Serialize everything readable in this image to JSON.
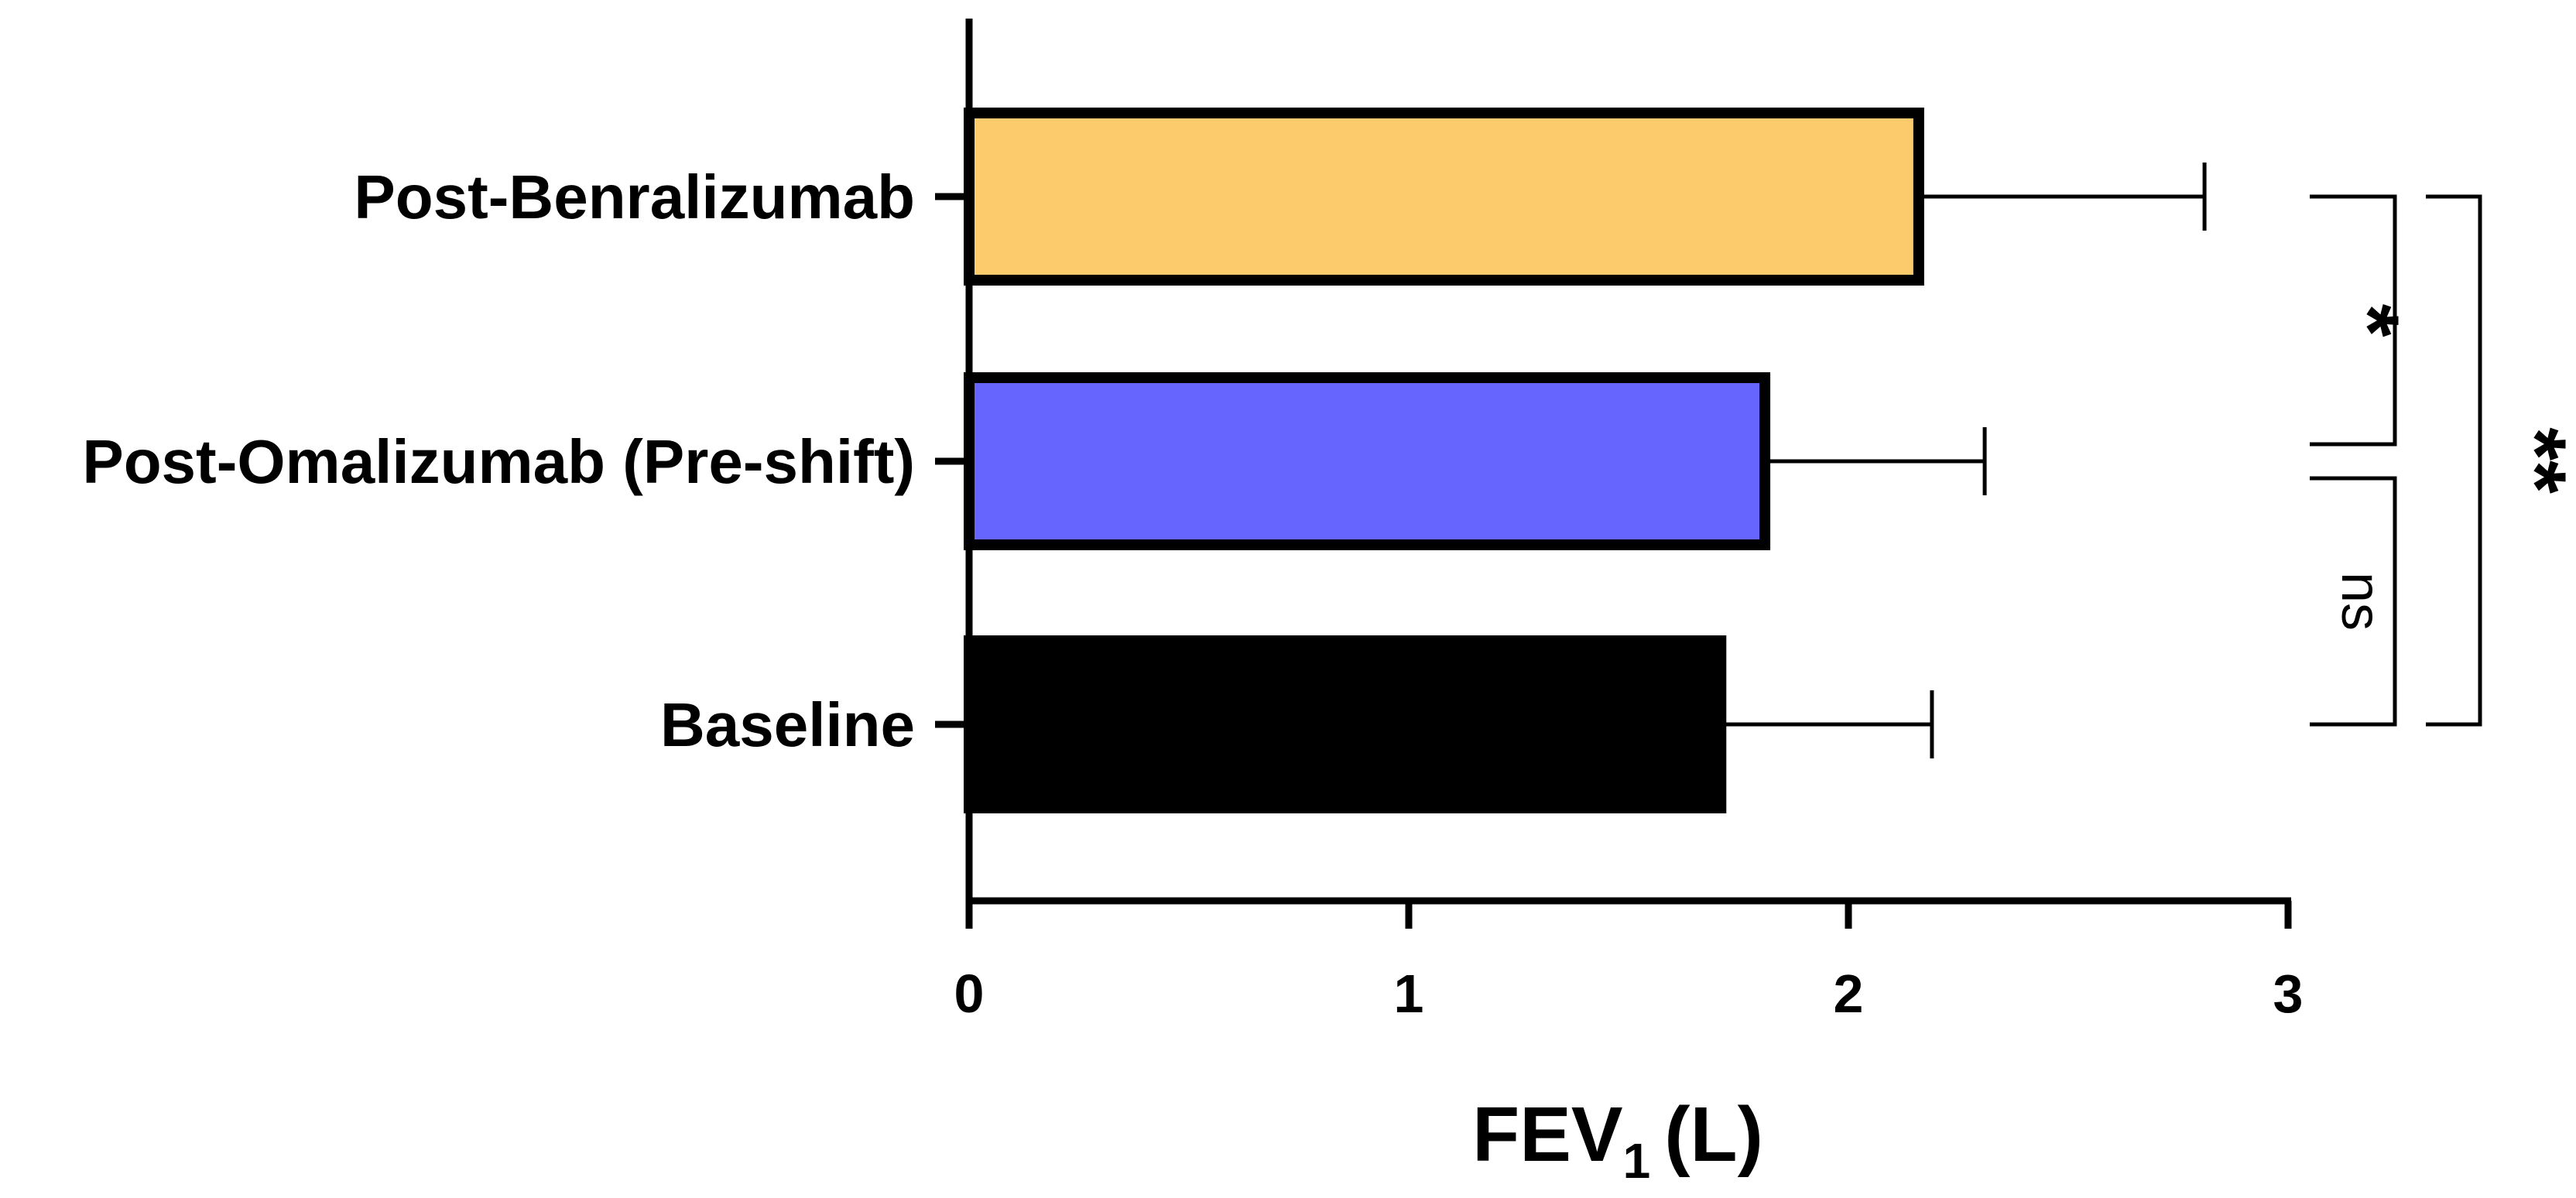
{
  "chart_data": {
    "type": "bar",
    "orientation": "horizontal",
    "categories": [
      "Post-Benralizumab",
      "Post-Omalizumab (Pre-shift)",
      "Baseline"
    ],
    "values": [
      2.16,
      1.81,
      1.71
    ],
    "error_upper": [
      2.81,
      2.31,
      2.19
    ],
    "colors": [
      "#FCCC6C",
      "#6666FF",
      "#000000"
    ],
    "xlabel_main": "FEV",
    "xlabel_sub": "1",
    "xlabel_unit": "(L)",
    "xlim": [
      0,
      3
    ],
    "xticks": [
      "0",
      "1",
      "2",
      "3"
    ],
    "grid": false,
    "significance": [
      {
        "from": "Post-Benralizumab",
        "to": "Post-Omalizumab (Pre-shift)",
        "label": "*"
      },
      {
        "from": "Post-Omalizumab (Pre-shift)",
        "to": "Baseline",
        "label": "ns"
      },
      {
        "from": "Post-Benralizumab",
        "to": "Baseline",
        "label": "**"
      }
    ]
  }
}
